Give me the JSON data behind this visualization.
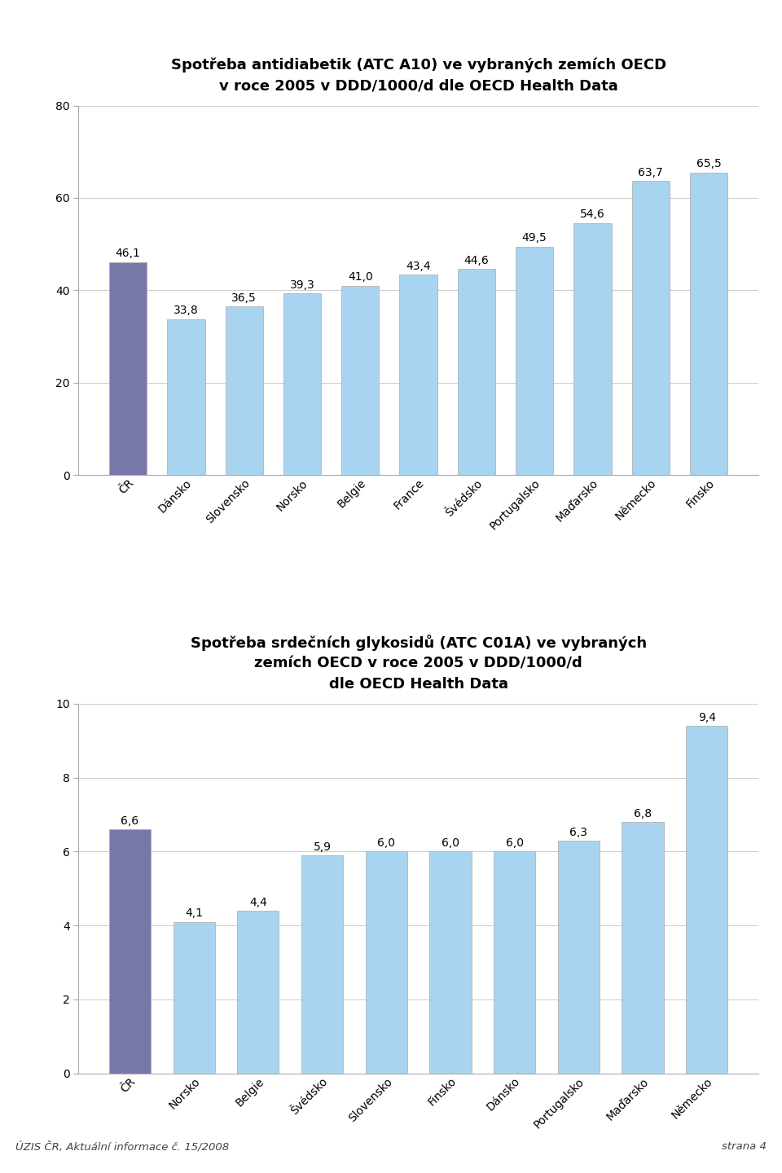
{
  "chart1": {
    "title": "Spotřeba antidiabetik (ATC A10) ve vybraných zemích OECD\nv roce 2005 v DDD/1000/d dle OECD Health Data",
    "categories": [
      "ČR",
      "Dánsko",
      "Slovensko",
      "Norsko",
      "Belgie",
      "France",
      "Švédsko",
      "Portugalsko",
      "Maďarsko",
      "Německo",
      "Finsko"
    ],
    "values": [
      46.1,
      33.8,
      36.5,
      39.3,
      41.0,
      43.4,
      44.6,
      49.5,
      54.6,
      63.7,
      65.5
    ],
    "bar_colors": [
      "#7878a8",
      "#a8d4f0",
      "#a8d4f0",
      "#a8d4f0",
      "#a8d4f0",
      "#a8d4f0",
      "#a8d4f0",
      "#a8d4f0",
      "#a8d4f0",
      "#a8d4f0",
      "#a8d4f0"
    ],
    "ylim": [
      0,
      80
    ],
    "yticks": [
      0,
      20,
      40,
      60,
      80
    ]
  },
  "chart2": {
    "title": "Spotřeba srdečních glykosidů (ATC C01A) ve vybraných\nzemích OECD v roce 2005 v DDD/1000/d\ndle OECD Health Data",
    "categories": [
      "ČR",
      "Norsko",
      "Belgie",
      "Švédsko",
      "Slovensko",
      "Finsko",
      "Dánsko",
      "Portugalsko",
      "Maďarsko",
      "Německo"
    ],
    "values": [
      6.6,
      4.1,
      4.4,
      5.9,
      6.0,
      6.0,
      6.0,
      6.3,
      6.8,
      9.4
    ],
    "bar_colors": [
      "#7878a8",
      "#a8d4f0",
      "#a8d4f0",
      "#a8d4f0",
      "#a8d4f0",
      "#a8d4f0",
      "#a8d4f0",
      "#a8d4f0",
      "#a8d4f0",
      "#a8d4f0"
    ],
    "ylim": [
      0,
      10
    ],
    "yticks": [
      0,
      2,
      4,
      6,
      8,
      10
    ]
  },
  "footer_left": "ÚZIS ČR, Aktuální informace č. 15/2008",
  "footer_right": "strana 4",
  "background_color": "#ffffff",
  "tick_fontsize": 10,
  "title_fontsize": 13,
  "value_fontsize": 10,
  "footer_fontsize": 9.5,
  "spine_color": "#aaaaaa"
}
